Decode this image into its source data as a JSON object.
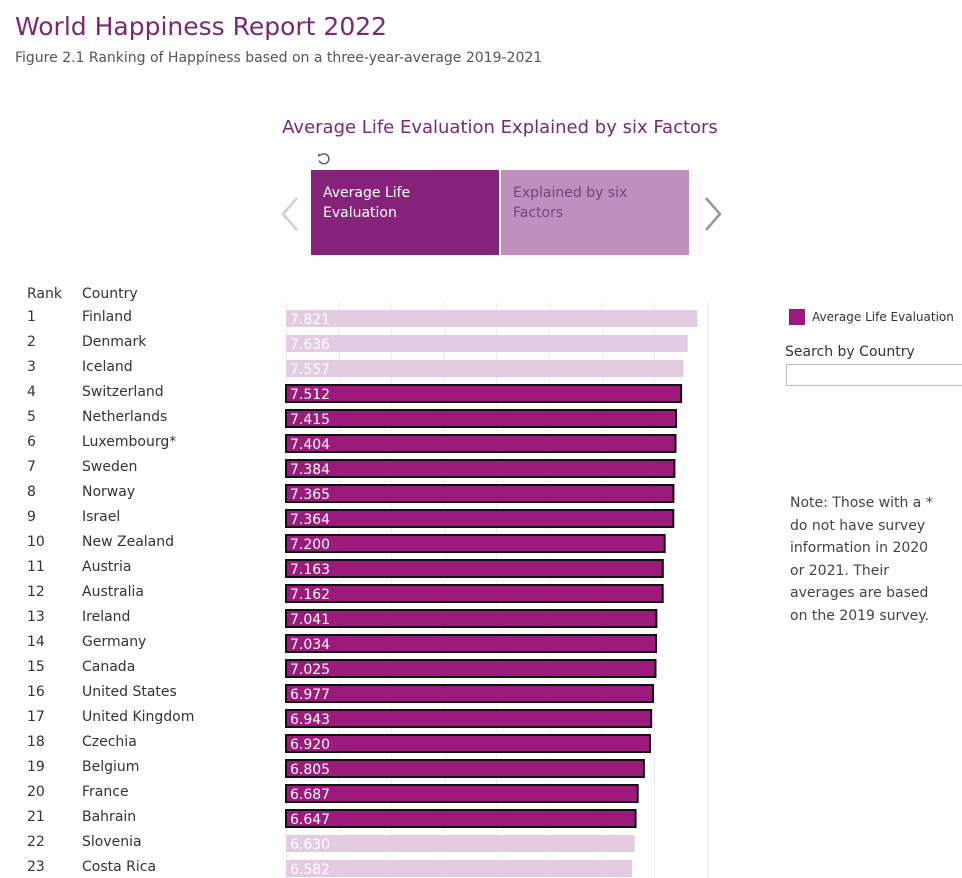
{
  "header": {
    "title": "World Happiness Report 2022",
    "subtitle": "Figure 2.1 Ranking of Happiness based on a three-year-average 2019-2021"
  },
  "tabs": {
    "title": "Average Life Evaluation Explained by six Factors",
    "items": [
      {
        "label_line1": "Average Life",
        "label_line2": "Evaluation",
        "active": true
      },
      {
        "label_line1": "Explained by six",
        "label_line2": "Factors",
        "active": false
      }
    ]
  },
  "columns": {
    "rank": "Rank",
    "country": "Country"
  },
  "legend": {
    "label": "Average Life Evaluation",
    "color": "#9b1a7b"
  },
  "search": {
    "label": "Search by Country",
    "value": ""
  },
  "note": "Note: Those with a * do not have survey information in 2020 or 2021. Their averages are based on the 2019 survey.",
  "colors": {
    "highlight": "#9b1a7b",
    "faded": "#e3cce2",
    "accent": "#7a2873"
  },
  "chart_data": {
    "type": "bar",
    "orientation": "horizontal",
    "xlim": [
      0,
      8
    ],
    "grid": true,
    "rows": [
      {
        "rank": "1",
        "country": "Finland",
        "value": 7.821,
        "label": "7.821",
        "highlighted": false
      },
      {
        "rank": "2",
        "country": "Denmark",
        "value": 7.636,
        "label": "7.636",
        "highlighted": false
      },
      {
        "rank": "3",
        "country": "Iceland",
        "value": 7.557,
        "label": "7.557",
        "highlighted": false
      },
      {
        "rank": "4",
        "country": "Switzerland",
        "value": 7.512,
        "label": "7.512",
        "highlighted": true
      },
      {
        "rank": "5",
        "country": "Netherlands",
        "value": 7.415,
        "label": "7.415",
        "highlighted": true
      },
      {
        "rank": "6",
        "country": "Luxembourg*",
        "value": 7.404,
        "label": "7.404",
        "highlighted": true
      },
      {
        "rank": "7",
        "country": "Sweden",
        "value": 7.384,
        "label": "7.384",
        "highlighted": true
      },
      {
        "rank": "8",
        "country": "Norway",
        "value": 7.365,
        "label": "7.365",
        "highlighted": true
      },
      {
        "rank": "9",
        "country": "Israel",
        "value": 7.364,
        "label": "7.364",
        "highlighted": true
      },
      {
        "rank": "10",
        "country": "New Zealand",
        "value": 7.2,
        "label": "7.200",
        "highlighted": true
      },
      {
        "rank": "11",
        "country": "Austria",
        "value": 7.163,
        "label": "7.163",
        "highlighted": true
      },
      {
        "rank": "12",
        "country": "Australia",
        "value": 7.162,
        "label": "7.162",
        "highlighted": true
      },
      {
        "rank": "13",
        "country": "Ireland",
        "value": 7.041,
        "label": "7.041",
        "highlighted": true
      },
      {
        "rank": "14",
        "country": "Germany",
        "value": 7.034,
        "label": "7.034",
        "highlighted": true
      },
      {
        "rank": "15",
        "country": "Canada",
        "value": 7.025,
        "label": "7.025",
        "highlighted": true
      },
      {
        "rank": "16",
        "country": "United States",
        "value": 6.977,
        "label": "6.977",
        "highlighted": true
      },
      {
        "rank": "17",
        "country": "United Kingdom",
        "value": 6.943,
        "label": "6.943",
        "highlighted": true
      },
      {
        "rank": "18",
        "country": "Czechia",
        "value": 6.92,
        "label": "6.920",
        "highlighted": true
      },
      {
        "rank": "19",
        "country": "Belgium",
        "value": 6.805,
        "label": "6.805",
        "highlighted": true
      },
      {
        "rank": "20",
        "country": "France",
        "value": 6.687,
        "label": "6.687",
        "highlighted": true
      },
      {
        "rank": "21",
        "country": "Bahrain",
        "value": 6.647,
        "label": "6.647",
        "highlighted": true
      },
      {
        "rank": "22",
        "country": "Slovenia",
        "value": 6.63,
        "label": "6.630",
        "highlighted": false
      },
      {
        "rank": "23",
        "country": "Costa Rica",
        "value": 6.582,
        "label": "6.582",
        "highlighted": false
      }
    ]
  }
}
